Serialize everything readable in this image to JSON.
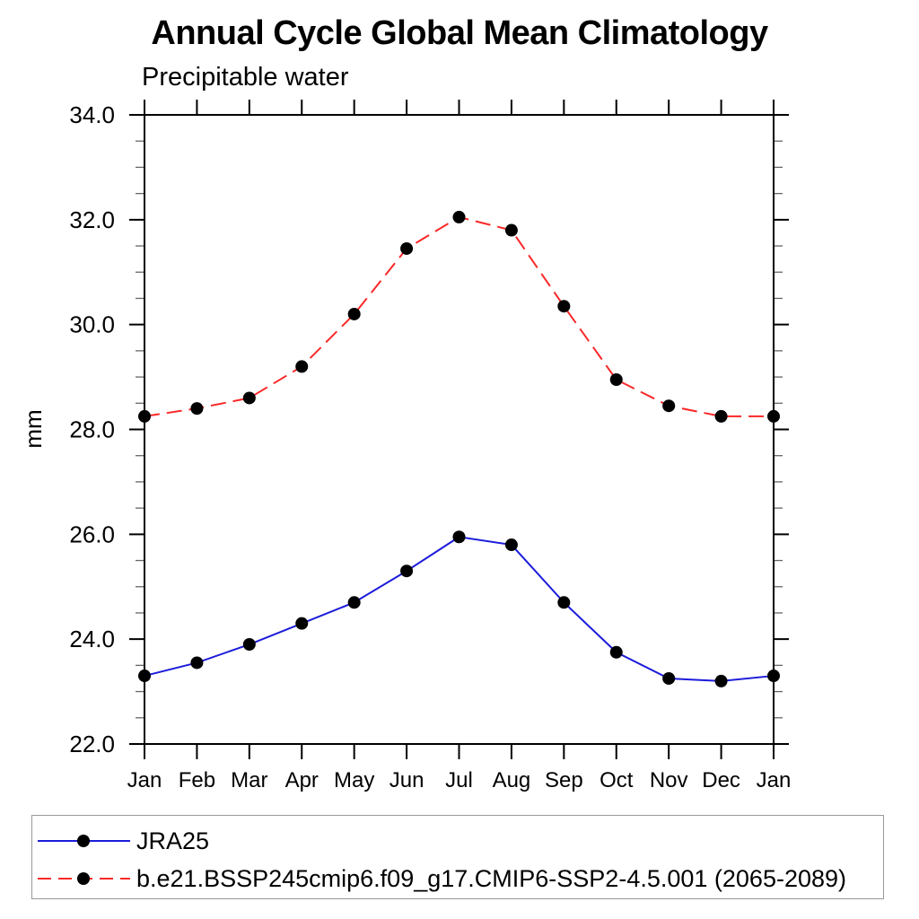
{
  "title": "Annual Cycle Global Mean Climatology",
  "subtitle": "Precipitable water",
  "y_axis_label": "mm",
  "chart_data": {
    "type": "line",
    "title": "Annual Cycle Global Mean Climatology",
    "subtitle": "Precipitable water",
    "xlabel": "",
    "ylabel": "mm",
    "categories": [
      "Jan",
      "Feb",
      "Mar",
      "Apr",
      "May",
      "Jun",
      "Jul",
      "Aug",
      "Sep",
      "Oct",
      "Nov",
      "Dec",
      "Jan"
    ],
    "ylim": [
      22.0,
      34.0
    ],
    "ytick_major_interval": 2.0,
    "ytick_minor_interval": 0.5,
    "ytick_labels": [
      "22.0",
      "24.0",
      "26.0",
      "28.0",
      "30.0",
      "32.0",
      "34.0"
    ],
    "grid": false,
    "legend_position": "bottom box",
    "axis_color": "#000000",
    "marker_radius": 7,
    "series": [
      {
        "name": "JRA25",
        "color": "#1c1cdb",
        "line_style": "solid",
        "marker": "filled-circle",
        "marker_color": "#000000",
        "values": [
          23.3,
          23.55,
          23.9,
          24.3,
          24.7,
          25.3,
          25.95,
          25.8,
          24.7,
          23.75,
          23.25,
          23.2,
          23.3
        ]
      },
      {
        "name": "b.e21.BSSP245cmip6.f09_g17.CMIP6-SSP2-4.5.001 (2065-2089)",
        "color": "#fa2828",
        "line_style": "dashed",
        "marker": "filled-circle",
        "marker_color": "#000000",
        "values": [
          28.25,
          28.4,
          28.6,
          29.2,
          30.2,
          31.45,
          32.05,
          31.8,
          30.35,
          28.95,
          28.45,
          28.25,
          28.25
        ]
      }
    ]
  }
}
